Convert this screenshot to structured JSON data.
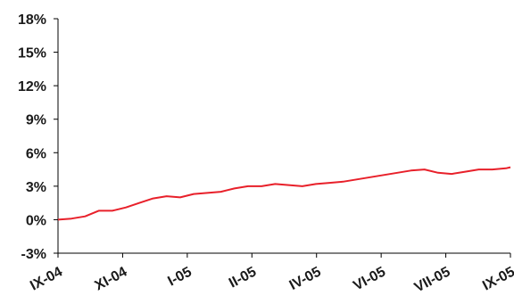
{
  "chart_data": {
    "type": "line",
    "title": "",
    "xlabel": "",
    "ylabel": "",
    "y_tick_labels": [
      "18%",
      "15%",
      "12%",
      "9%",
      "6%",
      "3%",
      "0%",
      "-3%"
    ],
    "y_ticks": [
      18,
      15,
      12,
      9,
      6,
      3,
      0,
      -3
    ],
    "ylim": [
      -3,
      18
    ],
    "x_tick_labels": [
      "IX-04",
      "XI-04",
      "I-05",
      "II-05",
      "IV-05",
      "VI-05",
      "VII-05",
      "IX-05"
    ],
    "grid": false,
    "legend": "none",
    "series": [
      {
        "color": "#e8202a",
        "x": [
          0,
          3,
          6,
          9,
          12,
          15,
          18,
          21,
          24,
          27,
          30,
          33,
          36,
          39,
          42,
          45,
          48,
          51,
          54,
          57,
          60,
          63,
          66,
          69,
          72,
          75,
          78,
          81,
          84,
          87,
          90,
          93,
          96,
          99,
          100
        ],
        "y": [
          0.0,
          0.1,
          0.3,
          0.8,
          0.8,
          1.1,
          1.5,
          1.9,
          2.1,
          2.0,
          2.3,
          2.4,
          2.5,
          2.8,
          3.0,
          3.0,
          3.2,
          3.1,
          3.0,
          3.2,
          3.3,
          3.4,
          3.6,
          3.8,
          4.0,
          4.2,
          4.4,
          4.5,
          4.2,
          4.1,
          4.3,
          4.5,
          4.5,
          4.6,
          4.7
        ]
      }
    ]
  }
}
